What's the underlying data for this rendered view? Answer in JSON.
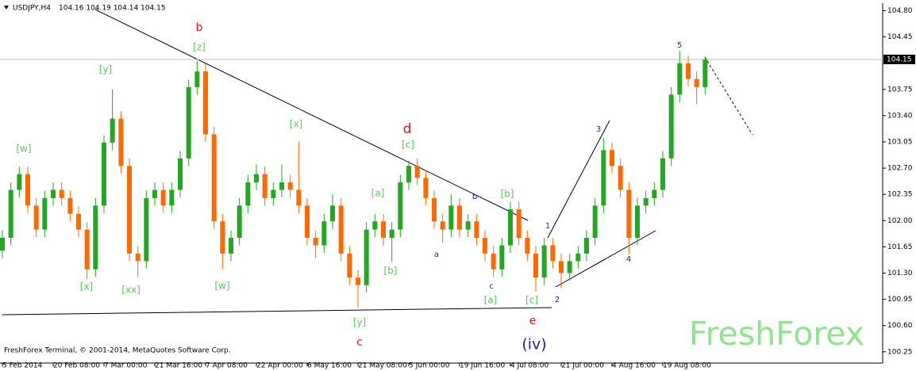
{
  "chart_data": {
    "type": "candlestick",
    "title": "USDJPY,H4",
    "subtitle": "104.16 104.19 104.14 104.15",
    "footer": "FreshForex Terminal, © 2001-2014, MetaQuotes Software Corp.",
    "watermark": "FreshForex",
    "up_color": "#22a822",
    "down_color": "#ff6a00",
    "last_price": 104.15,
    "ylim": [
      100.1,
      104.9
    ],
    "yticks": [
      {
        "value": 100.25,
        "label": "100.25"
      },
      {
        "value": 100.6,
        "label": "100.60"
      },
      {
        "value": 100.95,
        "label": "100.95"
      },
      {
        "value": 101.3,
        "label": "101.30"
      },
      {
        "value": 101.65,
        "label": "101.65"
      },
      {
        "value": 102,
        "label": "102.00"
      },
      {
        "value": 102.35,
        "label": "102.35"
      },
      {
        "value": 102.7,
        "label": "102.70"
      },
      {
        "value": 103.05,
        "label": "103.05"
      },
      {
        "value": 103.4,
        "label": "103.40"
      },
      {
        "value": 103.75,
        "label": "103.75"
      },
      {
        "value": 104.45,
        "label": "104.45"
      },
      {
        "value": 104.8,
        "label": "104.80"
      }
    ],
    "categories": [
      "5 Feb 2014",
      null,
      null,
      null,
      null,
      null,
      "20 Feb 08:00",
      null,
      null,
      null,
      null,
      null,
      "7 Mar 00:00",
      null,
      null,
      null,
      null,
      null,
      "21 Mar 16:00",
      null,
      null,
      null,
      null,
      null,
      "7 Apr 08:00",
      null,
      null,
      null,
      null,
      null,
      "22 Apr 00:00",
      null,
      null,
      null,
      null,
      null,
      "6 May 16:00",
      null,
      null,
      null,
      null,
      null,
      "21 May 08:00",
      null,
      null,
      null,
      null,
      null,
      "5 Jun 00:00",
      null,
      null,
      null,
      null,
      null,
      "19 Jun 16:00",
      null,
      null,
      null,
      null,
      null,
      "4 Jul 08:00",
      null,
      null,
      null,
      null,
      null,
      "21 Jul 00:00",
      null,
      null,
      null,
      null,
      null,
      "4 Aug 16:00",
      null,
      null,
      null,
      null,
      null,
      "19 Aug 08:00",
      null,
      null,
      null,
      null,
      null
    ],
    "open": [
      101.6,
      101.77,
      102.41,
      102.62,
      102.2,
      101.88,
      102.3,
      102.41,
      102.3,
      102.09,
      101.88,
      101.35,
      102.2,
      103.04,
      103.36,
      102.73,
      101.56,
      101.46,
      102.3,
      102.41,
      102.2,
      102.41,
      102.83,
      103.78,
      103.99,
      103.15,
      101.99,
      101.56,
      101.77,
      102.2,
      102.51,
      102.62,
      102.3,
      102.41,
      102.51,
      102.41,
      102.2,
      101.77,
      101.67,
      101.99,
      102.2,
      101.56,
      101.24,
      101.14,
      101.88,
      101.99,
      101.77,
      101.88,
      102.51,
      102.73,
      102.57,
      102.3,
      101.99,
      101.88,
      102.2,
      101.88,
      101.99,
      101.77,
      101.56,
      101.35,
      101.67,
      102.15,
      101.77,
      101.56,
      101.24,
      101.67,
      101.46,
      101.3,
      101.46,
      101.56,
      101.77,
      102.2,
      102.94,
      102.73,
      102.41,
      101.77,
      102.2,
      102.3,
      102.41,
      102.83,
      103.68,
      104.1,
      103.89,
      103.78
    ],
    "high": [
      101.87,
      102.51,
      102.72,
      102.72,
      102.3,
      102.4,
      102.51,
      102.51,
      102.4,
      102.19,
      101.98,
      102.3,
      103.14,
      103.75,
      103.46,
      102.83,
      101.66,
      102.4,
      102.51,
      102.51,
      102.51,
      102.93,
      103.88,
      104.13,
      104.09,
      103.25,
      102.09,
      101.87,
      102.3,
      102.61,
      102.75,
      102.72,
      102.51,
      102.75,
      102.61,
      103.05,
      102.3,
      101.87,
      102.09,
      102.35,
      102.3,
      101.66,
      101.34,
      101.98,
      102.09,
      102.09,
      101.98,
      102.61,
      102.8,
      102.83,
      102.67,
      102.4,
      102.09,
      102.35,
      102.3,
      102.09,
      102.09,
      101.87,
      101.66,
      101.77,
      102.25,
      102.25,
      101.87,
      101.66,
      101.77,
      101.77,
      101.56,
      101.56,
      101.66,
      101.87,
      102.3,
      103.1,
      103.04,
      102.83,
      102.51,
      102.3,
      102.4,
      102.51,
      102.93,
      103.78,
      104.26,
      104.2,
      103.99,
      104.19
    ],
    "low": [
      101.5,
      101.67,
      102.31,
      102.1,
      101.78,
      101.78,
      102.2,
      102.2,
      101.99,
      101.78,
      101.22,
      101.25,
      102.1,
      102.94,
      102.63,
      101.46,
      101.25,
      101.36,
      102.2,
      102.1,
      102.1,
      102.31,
      102.73,
      103.68,
      103.05,
      101.89,
      101.35,
      101.46,
      101.67,
      102.1,
      102.41,
      102.2,
      102.2,
      102.31,
      102.31,
      102.1,
      101.67,
      101.5,
      101.57,
      101.89,
      101.46,
      101.14,
      100.84,
      101.04,
      101.78,
      101.67,
      101.45,
      101.78,
      102.41,
      102.47,
      102.2,
      101.89,
      101.7,
      101.78,
      101.78,
      101.78,
      101.67,
      101.46,
      101.25,
      101.25,
      101.57,
      101.67,
      101.46,
      101.05,
      101.14,
      101.36,
      101.1,
      101.2,
      101.36,
      101.46,
      101.67,
      102.1,
      102.63,
      102.31,
      101.55,
      101.67,
      102.1,
      102.2,
      102.31,
      102.73,
      103.58,
      103.79,
      103.55,
      103.68
    ],
    "close": [
      101.77,
      102.41,
      102.62,
      102.2,
      101.88,
      102.3,
      102.41,
      102.3,
      102.09,
      101.88,
      101.35,
      102.2,
      103.04,
      103.36,
      102.73,
      101.56,
      101.46,
      102.3,
      102.41,
      102.2,
      102.41,
      102.83,
      103.78,
      103.99,
      103.15,
      101.99,
      101.56,
      101.77,
      102.2,
      102.51,
      102.62,
      102.3,
      102.41,
      102.51,
      102.41,
      102.2,
      101.77,
      101.67,
      101.99,
      102.2,
      101.56,
      101.24,
      101.14,
      101.88,
      101.99,
      101.77,
      101.88,
      102.51,
      102.73,
      102.57,
      102.3,
      101.99,
      101.88,
      102.2,
      101.88,
      101.99,
      101.77,
      101.56,
      101.35,
      101.67,
      102.15,
      101.77,
      101.56,
      101.24,
      101.67,
      101.46,
      101.3,
      101.46,
      101.56,
      101.77,
      102.2,
      102.94,
      102.73,
      102.41,
      101.77,
      102.2,
      102.3,
      102.41,
      102.83,
      103.68,
      104.1,
      103.89,
      103.78,
      104.15
    ],
    "annotations": [
      {
        "text": "b",
        "color": "#e01818"
      },
      {
        "text": "[z]",
        "color": "#5ac85a"
      },
      {
        "text": "[y]",
        "color": "#5ac85a"
      },
      {
        "text": "[w]",
        "color": "#5ac85a"
      },
      {
        "text": "[x]",
        "color": "#5ac85a"
      },
      {
        "text": "d",
        "color": "#e01818"
      },
      {
        "text": "[c]",
        "color": "#5ac85a"
      },
      {
        "text": "[a]",
        "color": "#5ac85a"
      },
      {
        "text": "b",
        "color": "#2020a0"
      },
      {
        "text": "[b]",
        "color": "#5ac85a"
      },
      {
        "text": "a",
        "color": "#2020a0"
      },
      {
        "text": "c",
        "color": "#2020a0"
      },
      {
        "text": "[b]",
        "color": "#5ac85a"
      },
      {
        "text": "[x]",
        "color": "#5ac85a"
      },
      {
        "text": "[xx]",
        "color": "#5ac85a"
      },
      {
        "text": "[w]",
        "color": "#5ac85a"
      },
      {
        "text": "[a]",
        "color": "#5ac85a"
      },
      {
        "text": "[c]",
        "color": "#5ac85a"
      },
      {
        "text": "[y]",
        "color": "#5ac85a"
      },
      {
        "text": "c",
        "color": "#e01818"
      },
      {
        "text": "e",
        "color": "#e01818"
      },
      {
        "text": "(iv)",
        "color": "#2020a0"
      },
      {
        "text": "1",
        "color": "#2020a0"
      },
      {
        "text": "2",
        "color": "#2020a0"
      },
      {
        "text": "3",
        "color": "#2020a0"
      },
      {
        "text": "4",
        "color": "#2020a0"
      },
      {
        "text": "5",
        "color": "#2020a0"
      }
    ]
  }
}
